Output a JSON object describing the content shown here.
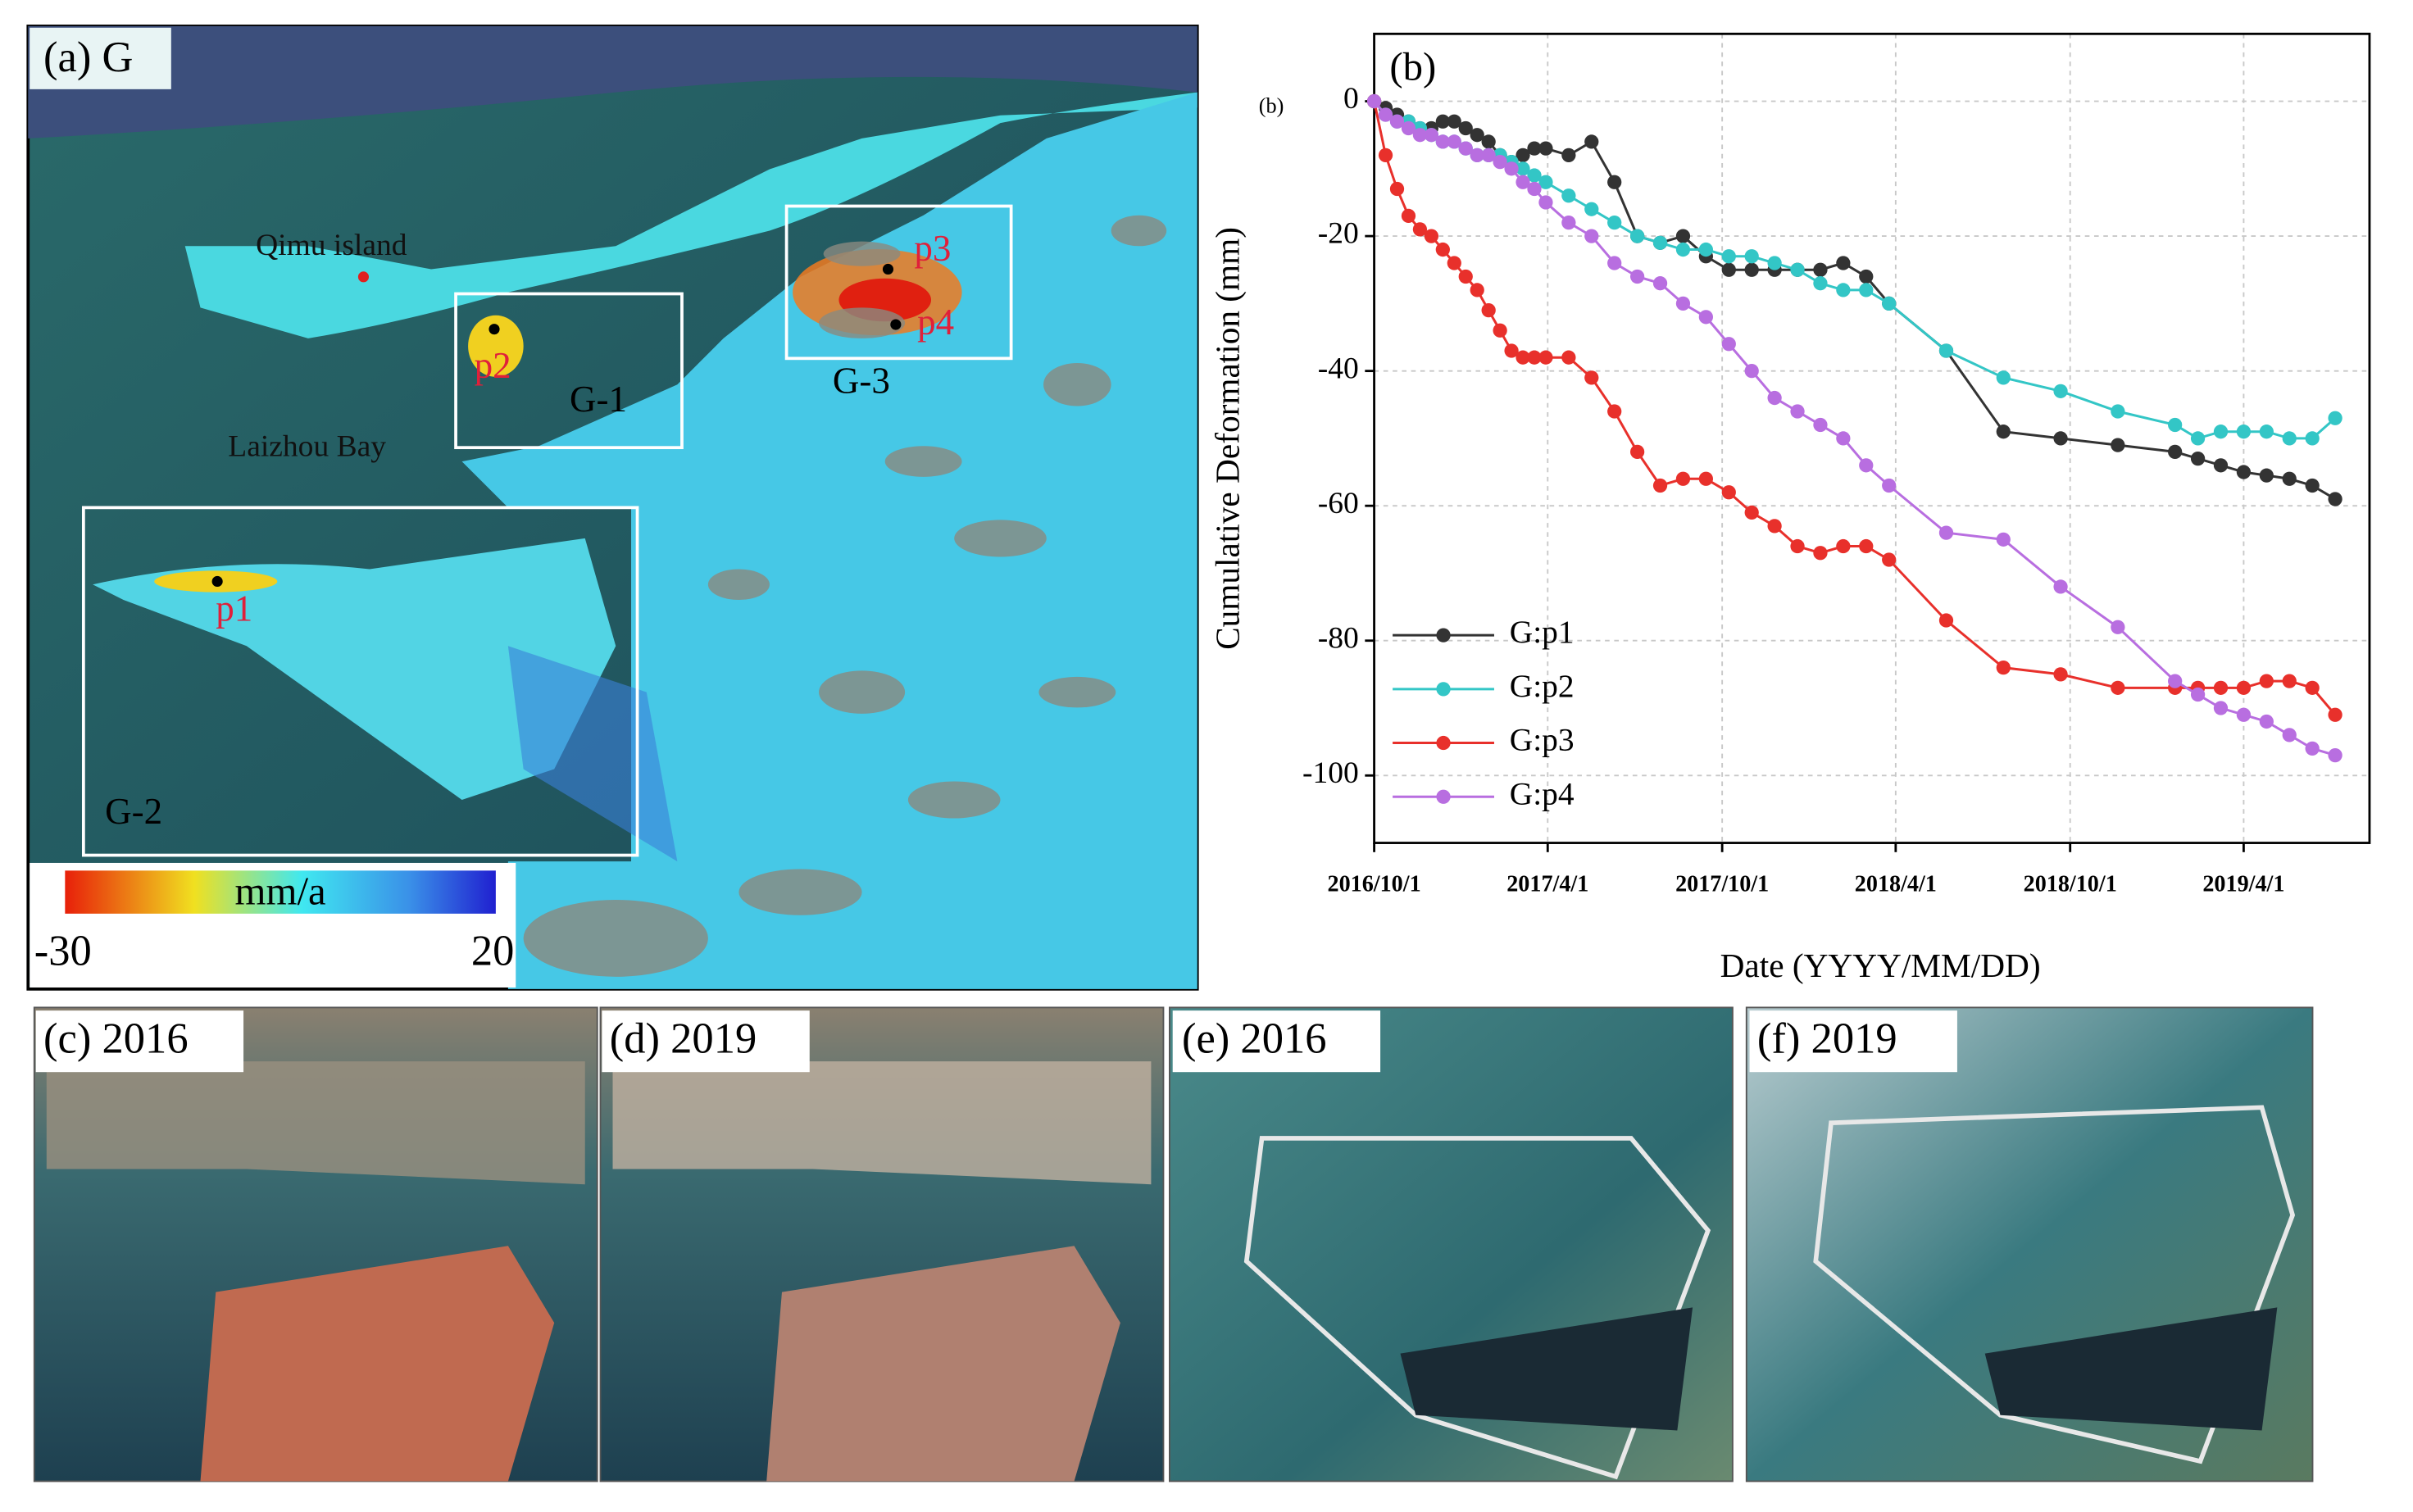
{
  "chart_data": {
    "type": "line",
    "panel_label": "(b)",
    "annotation": "(b)",
    "xlabel": "Date (YYYY/MM/DD)",
    "ylabel": "Cumulative Deformation (mm)",
    "x": [
      "2016/10/1",
      "2016/10/13",
      "2016/10/25",
      "2016/11/6",
      "2016/11/18",
      "2016/11/30",
      "2016/12/12",
      "2016/12/24",
      "2017/1/5",
      "2017/1/17",
      "2017/1/29",
      "2017/2/10",
      "2017/2/22",
      "2017/3/6",
      "2017/3/18",
      "2017/3/30",
      "2017/4/23",
      "2017/5/17",
      "2017/6/10",
      "2017/7/4",
      "2017/7/28",
      "2017/8/21",
      "2017/9/14",
      "2017/10/8",
      "2017/11/1",
      "2017/11/25",
      "2017/12/19",
      "2018/1/12",
      "2018/2/5",
      "2018/3/1",
      "2018/3/25",
      "2018/5/24",
      "2018/7/23",
      "2018/9/21",
      "2018/11/20",
      "2019/1/19",
      "2019/2/12",
      "2019/3/8",
      "2019/4/1",
      "2019/4/25",
      "2019/5/19",
      "2019/6/12",
      "2019/7/6"
    ],
    "xlim": [
      "2016/10/1",
      "2019/8/11"
    ],
    "xticks": [
      "2016/10/1",
      "2017/4/1",
      "2017/10/1",
      "2018/4/1",
      "2018/10/1",
      "2019/4/1"
    ],
    "ylim": [
      -110,
      10
    ],
    "yticks": [
      0,
      -20,
      -40,
      -60,
      -80,
      -100
    ],
    "grid": true,
    "legend": "lower left",
    "series": [
      {
        "name": "G:p1",
        "color": "#333333",
        "values": [
          0,
          -1,
          -2,
          -3,
          -4,
          -4,
          -3,
          -3,
          -4,
          -5,
          -6,
          -8,
          -9,
          -8,
          -7,
          -7,
          -8,
          -6,
          -12,
          -20,
          -21,
          -20,
          -23,
          -25,
          -25,
          -25,
          -25,
          -25,
          -24,
          -26,
          -30,
          -37,
          -49,
          -50,
          -51,
          -52,
          -53,
          -54,
          -55,
          -55.5,
          -56,
          -57,
          -59
        ]
      },
      {
        "name": "G:p2",
        "color": "#33c6c6",
        "values": [
          0,
          -2,
          -3,
          -3,
          -4,
          -5,
          -6,
          -6,
          -7,
          -8,
          -8,
          -8,
          -9,
          -10,
          -11,
          -12,
          -14,
          -16,
          -18,
          -20,
          -21,
          -22,
          -22,
          -23,
          -23,
          -24,
          -25,
          -27,
          -28,
          -28,
          -30,
          -37,
          -41,
          -43,
          -46,
          -48,
          -50,
          -49,
          -49,
          -49,
          -50,
          -50,
          -47
        ]
      },
      {
        "name": "G:p3",
        "color": "#e8302b",
        "values": [
          0,
          -8,
          -13,
          -17,
          -19,
          -20,
          -22,
          -24,
          -26,
          -28,
          -31,
          -34,
          -37,
          -38,
          -38,
          -38,
          -38,
          -41,
          -46,
          -52,
          -57,
          -56,
          -56,
          -58,
          -61,
          -63,
          -66,
          -67,
          -66,
          -66,
          -68,
          -77,
          -84,
          -85,
          -87,
          -87,
          -87,
          -87,
          -87,
          -86,
          -86,
          -87,
          -91
        ]
      },
      {
        "name": "G:p4",
        "color": "#b86ee0",
        "values": [
          0,
          -2,
          -3,
          -4,
          -5,
          -5,
          -6,
          -6,
          -7,
          -8,
          -8,
          -9,
          -10,
          -12,
          -13,
          -15,
          -18,
          -20,
          -24,
          -26,
          -27,
          -30,
          -32,
          -36,
          -40,
          -44,
          -46,
          -48,
          -50,
          -54,
          -57,
          -64,
          -65,
          -72,
          -78,
          -86,
          -88,
          -90,
          -91,
          -92,
          -94,
          -96,
          -97
        ]
      }
    ]
  },
  "map_panel": {
    "label": "(a) G",
    "island": "Qimu island",
    "bay": "Laizhou Bay",
    "regions": [
      "G-1",
      "G-2",
      "G-3"
    ],
    "points": [
      "p1",
      "p2",
      "p3",
      "p4"
    ],
    "colorbar": {
      "unit": "mm/a",
      "min": -30,
      "max": 20
    }
  },
  "photos": [
    "(c) 2016",
    "(d) 2019",
    "(e) 2016",
    "(f) 2019"
  ]
}
